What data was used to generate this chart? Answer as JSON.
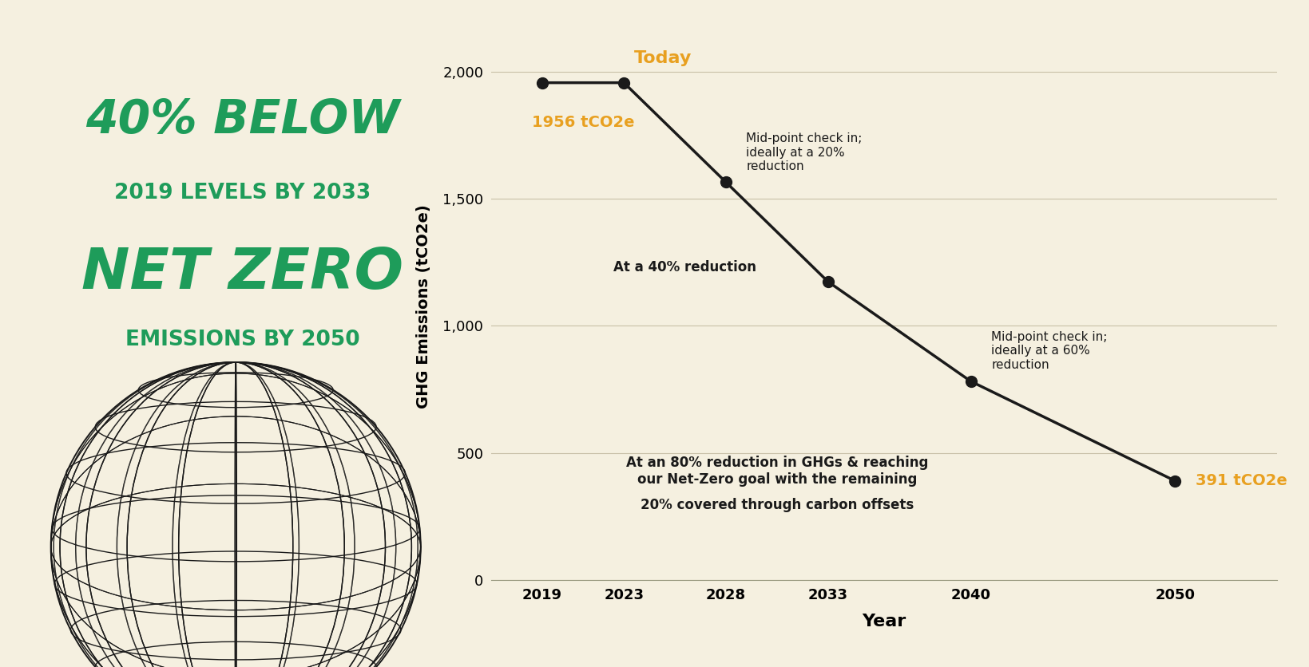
{
  "background_color": "#f5f0e0",
  "line_color": "#1a1a1a",
  "orange_color": "#e8a020",
  "green_color": "#1e9c5a",
  "years": [
    2019,
    2023,
    2028,
    2033,
    2040,
    2050
  ],
  "values": [
    1956,
    1956,
    1565,
    1174,
    782,
    391
  ],
  "xlabel": "Year",
  "ylabel": "GHG Emissions (tCO2e)",
  "yticks": [
    0,
    500,
    1000,
    1500,
    2000
  ],
  "ylim": [
    0,
    2150
  ],
  "xlim_left": 2016.5,
  "xlim_right": 2055,
  "left_title_line1": "40% BELOW",
  "left_title_line2": "2019 LEVELS BY 2033",
  "left_title_line3": "NET ZERO",
  "left_title_line4": "EMISSIONS BY 2050",
  "annotation_today_label": "Today",
  "annotation_1956_label": "1956 tCO2e",
  "annotation_mid1_text": "Mid-point check in;\nideally at a 20%\nreduction",
  "annotation_40pct_text": "At a 40% reduction",
  "annotation_mid2_text": "Mid-point check in;\nideally at a 60%\nreduction",
  "annotation_bottom_text": "At an 80% reduction in GHGs & reaching\nour Net-Zero goal with the remaining",
  "annotation_bottom_text2": "20% covered through carbon offsets",
  "annotation_391_label": "391 tCO2e",
  "marker_size": 10,
  "line_width": 2.5,
  "font_size_axis_label": 14,
  "font_size_tick": 13,
  "font_size_annotation": 11,
  "font_size_left_title1": 42,
  "font_size_left_title2": 19,
  "font_size_left_title3": 52,
  "font_size_left_title4": 19,
  "grid_color": "#c8c0a8",
  "spine_color": "#999980"
}
